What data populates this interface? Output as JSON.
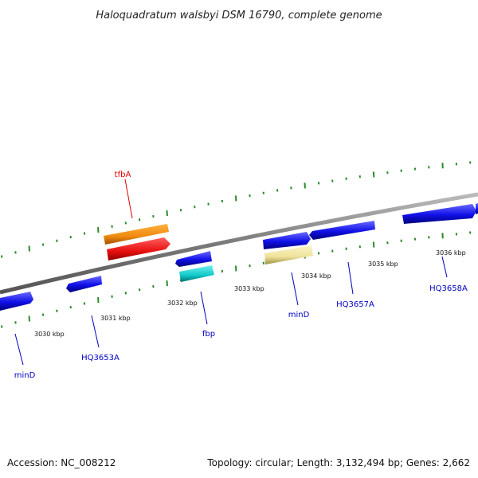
{
  "title": "Haloquadratum walsbyi DSM 16790, complete genome",
  "footer": {
    "accession": "Accession: NC_008212",
    "summary": "Topology: circular; Length: 3,132,494 bp; Genes: 2,662"
  },
  "colors": {
    "backbone": "#888888",
    "tick": "#2a8a2a",
    "forward_gene": "#1010e8",
    "reverse_gene": "#1010e8",
    "gene_label": "#0000c0",
    "tfbA": "#f08a10",
    "tfbA_label": "#e00000",
    "red_gene": "#e81010",
    "cyan_gene": "#10c8c8",
    "pale_gene": "#eee29a"
  },
  "scale_labels": [
    "3030 kbp",
    "3031 kbp",
    "3032 kbp",
    "3033 kbp",
    "3034 kbp",
    "3035 kbp",
    "3036 kbp"
  ],
  "gene_labels": {
    "tfbA": "tfbA",
    "minD_left": "minD",
    "HQ3653A": "HQ3653A",
    "fbp": "fbp",
    "minD_right": "minD",
    "HQ3657A": "HQ3657A",
    "HQ3658A": "HQ3658A"
  }
}
